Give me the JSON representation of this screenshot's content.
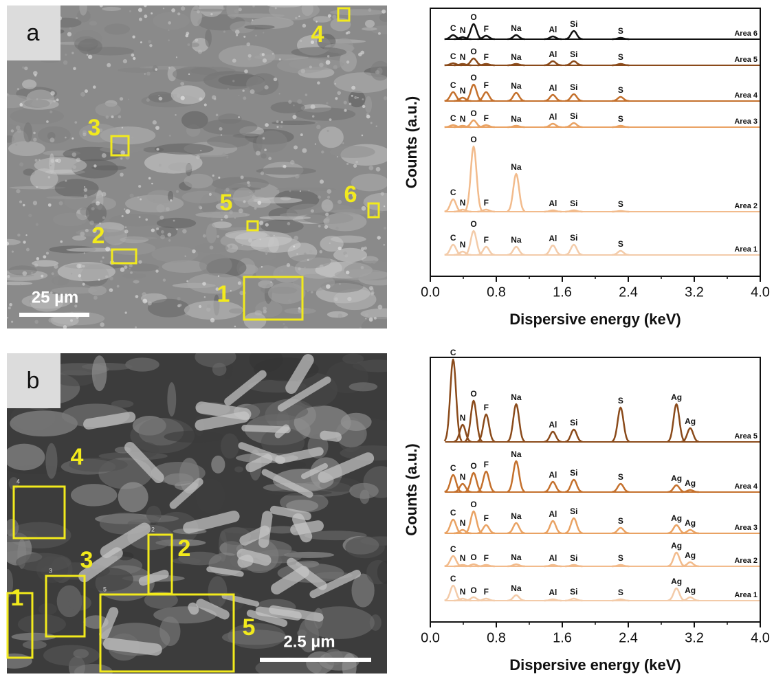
{
  "images": [
    {
      "label": "a",
      "scale_bar": "25 µm",
      "regions": [
        "1",
        "2",
        "3",
        "4",
        "5",
        "6"
      ]
    },
    {
      "label": "b",
      "scale_bar": "2.5 µm",
      "regions": [
        "1",
        "2",
        "3",
        "4",
        "5"
      ]
    }
  ],
  "chart_data": [
    {
      "type": "line",
      "x_label": "Dispersive energy (keV)",
      "y_label": "Counts (a.u.)",
      "xlim": [
        0,
        4
      ],
      "xticks": [
        {
          "value": 0,
          "label": "0.0"
        },
        {
          "value": 0.8,
          "label": "0.8"
        },
        {
          "value": 1.6,
          "label": "1.6"
        },
        {
          "value": 2.4,
          "label": "2.4"
        },
        {
          "value": 3.2,
          "label": "3.2"
        },
        {
          "value": 4,
          "label": "4.0"
        }
      ],
      "ylim": [
        0,
        390
      ],
      "peak_labels": [
        "C",
        "N",
        "O",
        "F",
        "Na",
        "Al",
        "Si",
        "S"
      ],
      "x": [
        0.277,
        0.392,
        0.525,
        0.677,
        1.041,
        1.486,
        1.74,
        2.307
      ],
      "series": [
        {
          "name": "Area 1",
          "color": "#f3cba9",
          "values": [
            15,
            5,
            35,
            12,
            12,
            14,
            15,
            6
          ]
        },
        {
          "name": "Area 2",
          "color": "#f2bb8c",
          "values": [
            18,
            3,
            95,
            3,
            55,
            2,
            2,
            1
          ]
        },
        {
          "name": "Area 3",
          "color": "#e9a263",
          "values": [
            3,
            2,
            10,
            3,
            2,
            5,
            6,
            2
          ]
        },
        {
          "name": "Area 4",
          "color": "#c4702c",
          "values": [
            13,
            5,
            24,
            13,
            12,
            9,
            10,
            6
          ]
        },
        {
          "name": "Area 5",
          "color": "#8a4a1a",
          "values": [
            3,
            2,
            10,
            2,
            2,
            6,
            6,
            2
          ]
        },
        {
          "name": "Area 6",
          "color": "#111111",
          "values": [
            6,
            3,
            22,
            5,
            6,
            4,
            12,
            2
          ]
        }
      ]
    },
    {
      "type": "line",
      "x_label": "Dispersive energy (keV)",
      "y_label": "Counts (a.u.)",
      "xlim": [
        0,
        4
      ],
      "xticks": [
        {
          "value": 0,
          "label": "0.0"
        },
        {
          "value": 0.8,
          "label": "0.8"
        },
        {
          "value": 1.6,
          "label": "1.6"
        },
        {
          "value": 2.4,
          "label": "2.4"
        },
        {
          "value": 3.2,
          "label": "3.2"
        },
        {
          "value": 4,
          "label": "4.0"
        }
      ],
      "ylim": [
        0,
        385
      ],
      "peak_labels": [
        "C",
        "N",
        "O",
        "F",
        "Na",
        "Al",
        "Si",
        "S",
        "Ag",
        "Ag"
      ],
      "x": [
        0.277,
        0.392,
        0.525,
        0.677,
        1.041,
        1.486,
        1.74,
        2.307,
        2.984,
        3.151
      ],
      "series": [
        {
          "name": "Area 1",
          "color": "#f3cba9",
          "values": [
            22,
            3,
            5,
            3,
            8,
            2,
            3,
            2,
            18,
            5
          ]
        },
        {
          "name": "Area 2",
          "color": "#f2bb8c",
          "values": [
            15,
            2,
            3,
            2,
            3,
            2,
            2,
            2,
            20,
            6
          ]
        },
        {
          "name": "Area 3",
          "color": "#e9a263",
          "values": [
            20,
            5,
            32,
            12,
            15,
            18,
            22,
            8,
            12,
            5
          ]
        },
        {
          "name": "Area 4",
          "color": "#c4702c",
          "values": [
            25,
            12,
            28,
            30,
            45,
            15,
            18,
            12,
            10,
            3
          ]
        },
        {
          "name": "Area 5",
          "color": "#8a4a1a",
          "values": [
            120,
            25,
            60,
            40,
            55,
            15,
            18,
            50,
            55,
            20
          ]
        }
      ]
    }
  ]
}
